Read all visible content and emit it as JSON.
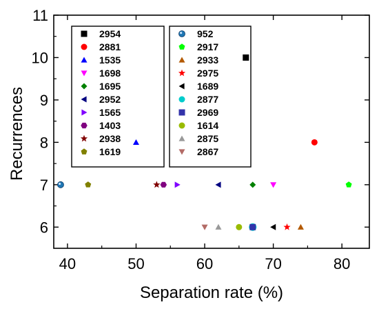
{
  "chart_data": {
    "type": "scatter",
    "title": "",
    "xlabel": "Separation rate (%)",
    "ylabel": "Recurrences",
    "xlim": [
      38,
      84
    ],
    "ylim": [
      5.5,
      11
    ],
    "xticks": [
      40,
      50,
      60,
      70,
      80
    ],
    "yticks": [
      6,
      7,
      8,
      9,
      10,
      11
    ],
    "grid": false,
    "legend_placement": "top-left and top-center, two boxed columns",
    "series": [
      {
        "name": "2954",
        "marker": "square",
        "color": "#000000",
        "points": [
          [
            66,
            10
          ]
        ]
      },
      {
        "name": "2881",
        "marker": "circle",
        "color": "#ff0000",
        "points": [
          [
            76,
            8
          ]
        ]
      },
      {
        "name": "1535",
        "marker": "triangle-up",
        "color": "#0000ff",
        "points": [
          [
            50,
            8
          ]
        ]
      },
      {
        "name": "1698",
        "marker": "triangle-down",
        "color": "#ff00ff",
        "points": [
          [
            70,
            7
          ]
        ]
      },
      {
        "name": "1695",
        "marker": "diamond",
        "color": "#008000",
        "points": [
          [
            67,
            7
          ]
        ]
      },
      {
        "name": "2952",
        "marker": "triangle-left",
        "color": "#000080",
        "points": [
          [
            62,
            7
          ]
        ]
      },
      {
        "name": "1565",
        "marker": "triangle-right",
        "color": "#8000ff",
        "points": [
          [
            56,
            7
          ]
        ]
      },
      {
        "name": "1403",
        "marker": "hexagon",
        "color": "#800080",
        "points": [
          [
            54,
            7
          ]
        ]
      },
      {
        "name": "2938",
        "marker": "star",
        "color": "#800000",
        "points": [
          [
            53,
            7
          ]
        ]
      },
      {
        "name": "1619",
        "marker": "pentagon",
        "color": "#808000",
        "points": [
          [
            43,
            7
          ]
        ]
      },
      {
        "name": "952",
        "marker": "sphere",
        "color": "#1f77b4",
        "points": [
          [
            39,
            7
          ]
        ]
      },
      {
        "name": "2917",
        "marker": "pentagon",
        "color": "#00ff00",
        "points": [
          [
            81,
            7
          ]
        ]
      },
      {
        "name": "2933",
        "marker": "triangle-up",
        "color": "#b35900",
        "points": [
          [
            74,
            6
          ]
        ]
      },
      {
        "name": "2975",
        "marker": "star",
        "color": "#ff0000",
        "points": [
          [
            72,
            6
          ]
        ]
      },
      {
        "name": "1689",
        "marker": "triangle-left",
        "color": "#000000",
        "points": [
          [
            70,
            6
          ]
        ]
      },
      {
        "name": "2877",
        "marker": "circle",
        "color": "#00cccc",
        "points": [
          [
            67,
            6
          ]
        ]
      },
      {
        "name": "2969",
        "marker": "square",
        "color": "#3333aa",
        "points": [
          [
            67,
            6
          ]
        ]
      },
      {
        "name": "1614",
        "marker": "circle",
        "color": "#99bb00",
        "points": [
          [
            65,
            6
          ]
        ]
      },
      {
        "name": "2875",
        "marker": "triangle-up",
        "color": "#999999",
        "points": [
          [
            62,
            6
          ]
        ]
      },
      {
        "name": "2867",
        "marker": "triangle-down",
        "color": "#b36b66",
        "points": [
          [
            60,
            6
          ]
        ]
      }
    ]
  }
}
